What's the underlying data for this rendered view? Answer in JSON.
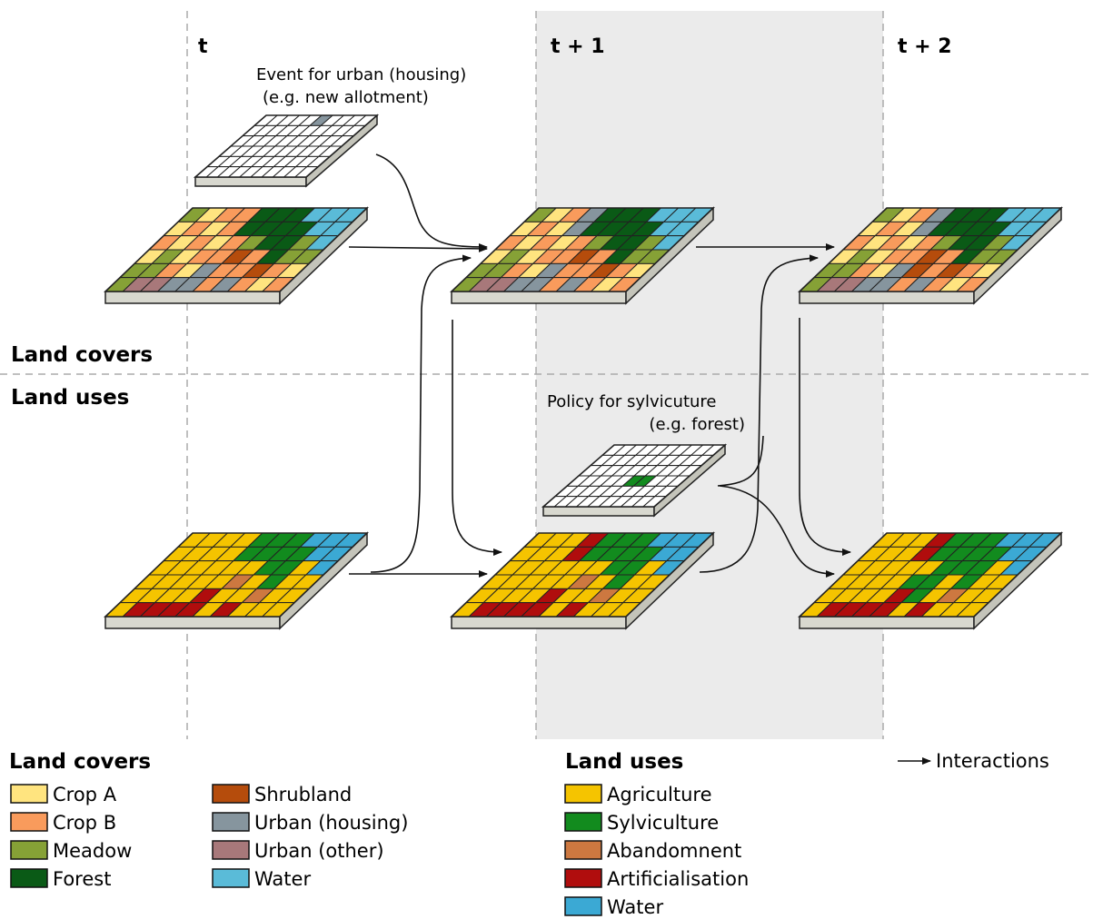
{
  "time_labels": [
    "t",
    "t + 1",
    "t + 2"
  ],
  "row_labels": {
    "covers": "Land covers",
    "uses": "Land uses"
  },
  "annotations": {
    "event_line1": "Event for urban (housing)",
    "event_line2": "(e.g. new allotment)",
    "policy_line1": "Policy for sylvicuture",
    "policy_line2": "(e.g. forest)"
  },
  "legend": {
    "covers_title": "Land covers",
    "covers": [
      {
        "label": "Crop A",
        "color": "#FFE47F"
      },
      {
        "label": "Crop B",
        "color": "#F99B5C"
      },
      {
        "label": "Meadow",
        "color": "#86A136"
      },
      {
        "label": "Forest",
        "color": "#0A5A16"
      },
      {
        "label": "Shrubland",
        "color": "#B54C0C"
      },
      {
        "label": "Urban (housing)",
        "color": "#86959E"
      },
      {
        "label": "Urban (other)",
        "color": "#A8787A"
      },
      {
        "label": "Water",
        "color": "#5ABBD8"
      }
    ],
    "uses_title": "Land uses",
    "uses": [
      {
        "label": "Agriculture",
        "color": "#F5C400"
      },
      {
        "label": "Sylviculture",
        "color": "#128B1E"
      },
      {
        "label": "Abandomnent",
        "color": "#CD7840"
      },
      {
        "label": "Artificialisation",
        "color": "#B00D0D"
      },
      {
        "label": "Water",
        "color": "#3BA9D4"
      }
    ],
    "interactions": "Interactions"
  },
  "colors": {
    "band": "#EBEBEB",
    "dash": "#ABABAB",
    "slab_side": "#D8D8CF",
    "arrow": "#111111"
  }
}
